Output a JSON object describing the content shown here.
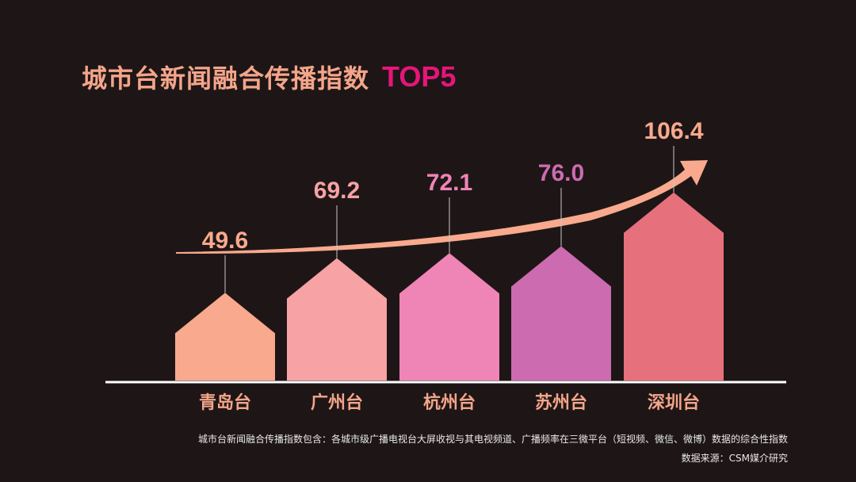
{
  "title": {
    "main": "城市台新闻融合传播指数",
    "accent": "TOP5"
  },
  "chart_data": {
    "type": "bar",
    "categories": [
      "青岛台",
      "广州台",
      "杭州台",
      "苏州台",
      "深圳台"
    ],
    "values": [
      49.6,
      69.2,
      72.1,
      76.0,
      106.4
    ],
    "value_labels": [
      "49.6",
      "69.2",
      "72.1",
      "76.0",
      "106.4"
    ],
    "bar_colors": [
      "#f9a98d",
      "#f7a2a4",
      "#ef84b7",
      "#cc6bb0",
      "#e6717c"
    ],
    "value_colors": [
      "#f9a98d",
      "#f7a2a4",
      "#ef84b7",
      "#cc6bb0",
      "#f9a98d"
    ],
    "category_color": "#f4a58a",
    "trend_arrow_color": "#f9a98d",
    "bar_shape": "house",
    "grid": false,
    "legend": "none"
  },
  "footnotes": {
    "definition": "城市台新闻融合传播指数包含：各城市级广播电视台大屏收视与其电视频道、广播频率在三微平台（短视频、微信、微博）数据的综合性指数",
    "source": "数据来源：CSM媒介研究"
  }
}
